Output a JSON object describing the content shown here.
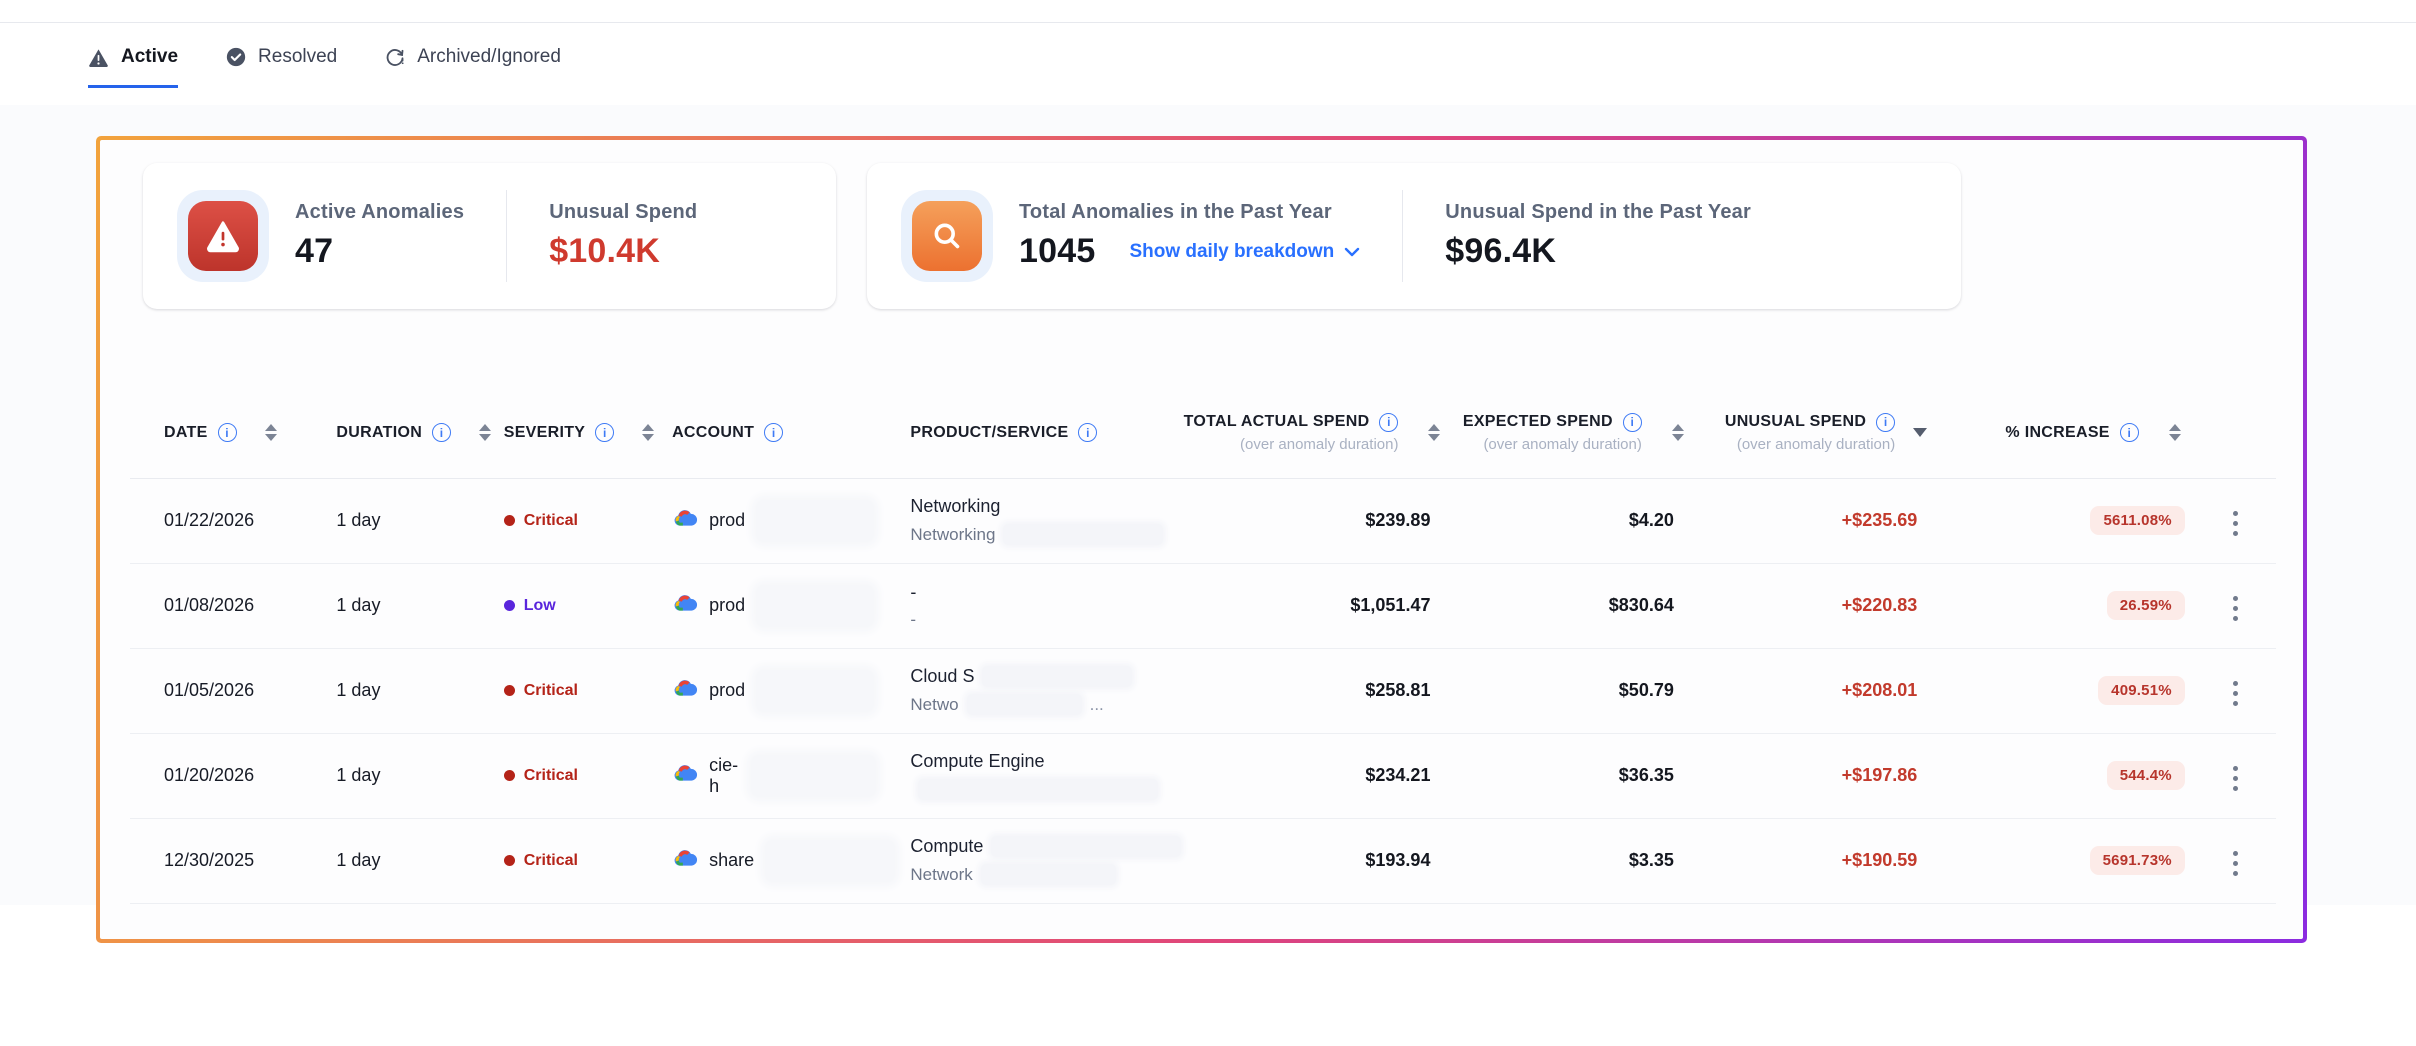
{
  "tabs": [
    {
      "label": "Active",
      "icon": "warning-triangle-icon",
      "active": true
    },
    {
      "label": "Resolved",
      "icon": "check-circle-icon",
      "active": false
    },
    {
      "label": "Archived/Ignored",
      "icon": "restore-alert-icon",
      "active": false
    }
  ],
  "summary_cards": {
    "active": {
      "icon": "alert-red-tile-icon",
      "label": "Active Anomalies",
      "value": "47",
      "spend_label": "Unusual Spend",
      "spend_value": "$10.4K"
    },
    "past_year": {
      "icon": "search-orange-tile-icon",
      "label": "Total Anomalies in the Past Year",
      "value": "1045",
      "breakdown_link": "Show daily breakdown",
      "spend_label": "Unusual Spend in the Past Year",
      "spend_value": "$96.4K"
    }
  },
  "table": {
    "headers": {
      "date": "DATE",
      "duration": "DURATION",
      "severity": "SEVERITY",
      "account": "ACCOUNT",
      "product": "PRODUCT/SERVICE",
      "total": "TOTAL ACTUAL SPEND",
      "expected": "EXPECTED SPEND",
      "unusual": "UNUSUAL SPEND",
      "increase": "% INCREASE",
      "duration_note": "(over anomaly duration)"
    },
    "sort_state": {
      "column": "unusual",
      "direction": "desc"
    },
    "rows": [
      {
        "date": "01/22/2026",
        "duration": "1 day",
        "severity": "Critical",
        "severity_level": "critical",
        "account": "prod",
        "account_redact": 118,
        "product_line1": "Networking",
        "p1_redact": 0,
        "product_line2": "Networking",
        "p2_redact": 160,
        "p2_suffix": "",
        "total": "$239.89",
        "expected": "$4.20",
        "unusual": "+$235.69",
        "increase": "5611.08%"
      },
      {
        "date": "01/08/2026",
        "duration": "1 day",
        "severity": "Low",
        "severity_level": "low",
        "account": "prod",
        "account_redact": 118,
        "product_line1": "-",
        "p1_redact": 0,
        "product_line2": "-",
        "p2_redact": 0,
        "p2_suffix": "",
        "total": "$1,051.47",
        "expected": "$830.64",
        "unusual": "+$220.83",
        "increase": "26.59%"
      },
      {
        "date": "01/05/2026",
        "duration": "1 day",
        "severity": "Critical",
        "severity_level": "critical",
        "account": "prod",
        "account_redact": 118,
        "product_line1": "Cloud S",
        "p1_redact": 150,
        "product_line2": "Netwo",
        "p2_redact": 115,
        "p2_suffix": "...",
        "total": "$258.81",
        "expected": "$50.79",
        "unusual": "+$208.01",
        "increase": "409.51%"
      },
      {
        "date": "01/20/2026",
        "duration": "1 day",
        "severity": "Critical",
        "severity_level": "critical",
        "account": "cie-h",
        "account_redact": 125,
        "product_line1": "Compute Engine",
        "p1_redact": 0,
        "product_line2": "",
        "p2_redact": 240,
        "p2_suffix": "",
        "total": "$234.21",
        "expected": "$36.35",
        "unusual": "+$197.86",
        "increase": "544.4%"
      },
      {
        "date": "12/30/2025",
        "duration": "1 day",
        "severity": "Critical",
        "severity_level": "critical",
        "account": "share",
        "account_redact": 130,
        "product_line1": "Compute",
        "p1_redact": 190,
        "product_line2": "Network",
        "p2_redact": 135,
        "p2_suffix": "",
        "total": "$193.94",
        "expected": "$3.35",
        "unusual": "+$190.59",
        "increase": "5691.73%"
      }
    ]
  },
  "colors": {
    "accent": "#2563eb",
    "link": "#2970ff",
    "critical": "#b42318",
    "low": "#5925dc",
    "red": "#c23a2c",
    "badge-bg": "#fcebe8",
    "badge-text": "#b7352c",
    "border-grad-1": "#f2a33c",
    "border-grad-2": "#e0457b",
    "border-grad-3": "#8b2be0"
  }
}
